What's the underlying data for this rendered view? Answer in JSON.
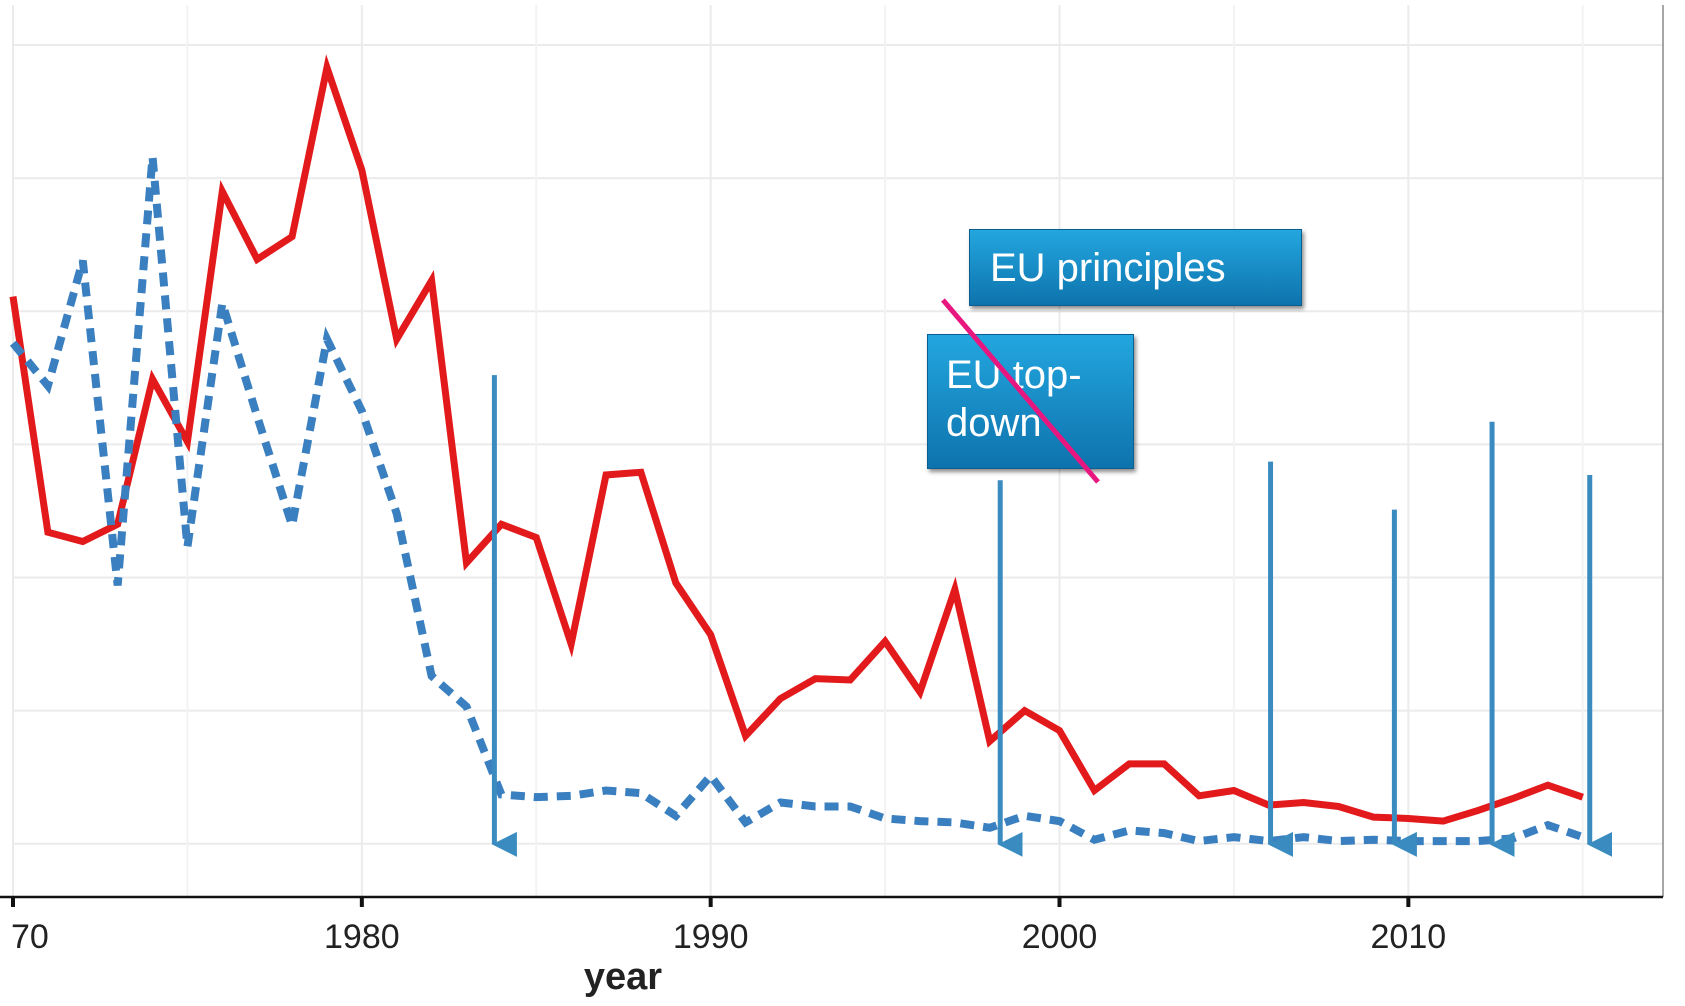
{
  "chart_data": {
    "type": "line",
    "xlabel": "year",
    "xlim": [
      1970,
      2017.3
    ],
    "xticks": [
      {
        "value": 1970,
        "label": "70"
      },
      1980,
      1990,
      2000,
      2010
    ],
    "minor_xticks": [
      1975,
      1985,
      1995,
      2005,
      2015
    ],
    "ylim": [
      -0.4,
      6.3
    ],
    "yticks": [
      0,
      1,
      2,
      3,
      4,
      5,
      6
    ],
    "grid": true,
    "x": [
      1970,
      1971,
      1972,
      1973,
      1974,
      1975,
      1976,
      1977,
      1978,
      1979,
      1980,
      1981,
      1982,
      1983,
      1984,
      1985,
      1986,
      1987,
      1988,
      1989,
      1990,
      1991,
      1992,
      1993,
      1994,
      1995,
      1996,
      1997,
      1998,
      1999,
      2000,
      2001,
      2002,
      2003,
      2004,
      2005,
      2006,
      2007,
      2008,
      2009,
      2010,
      2011,
      2012,
      2013,
      2014,
      2015
    ],
    "series": [
      {
        "color": "#e31a1c",
        "style": "solid",
        "values": [
          4.11,
          2.34,
          2.27,
          2.4,
          3.49,
          3.02,
          4.9,
          4.39,
          4.56,
          5.83,
          5.06,
          3.79,
          4.23,
          2.11,
          2.4,
          2.3,
          1.5,
          2.77,
          2.79,
          1.96,
          1.57,
          0.81,
          1.09,
          1.24,
          1.23,
          1.52,
          1.14,
          1.91,
          0.77,
          1.0,
          0.85,
          0.4,
          0.6,
          0.6,
          0.36,
          0.4,
          0.29,
          0.31,
          0.28,
          0.2,
          0.19,
          0.17,
          0.25,
          0.34,
          0.44,
          0.35
        ]
      },
      {
        "color": "#3a7fbf",
        "style": "dotted",
        "values": [
          3.76,
          3.44,
          4.38,
          1.94,
          5.16,
          2.23,
          4.06,
          3.21,
          2.39,
          3.79,
          3.25,
          2.48,
          1.26,
          1.03,
          0.37,
          0.35,
          0.36,
          0.4,
          0.38,
          0.21,
          0.51,
          0.16,
          0.31,
          0.28,
          0.28,
          0.19,
          0.17,
          0.16,
          0.12,
          0.21,
          0.17,
          0.03,
          0.1,
          0.08,
          0.02,
          0.05,
          0.02,
          0.05,
          0.02,
          0.03,
          0.02,
          0.02,
          0.02,
          0.04,
          0.14,
          0.05
        ]
      }
    ],
    "arrows": {
      "color": "#3a8cc0",
      "x": [
        1983.8,
        1998.3,
        2006.05,
        2009.6,
        2012.4,
        2015.2
      ],
      "y_from": [
        3.52,
        2.73,
        2.87,
        2.51,
        3.17,
        2.77
      ],
      "y_to": -0.14
    },
    "annotations": [
      "EU principles",
      "EU top-down"
    ]
  }
}
